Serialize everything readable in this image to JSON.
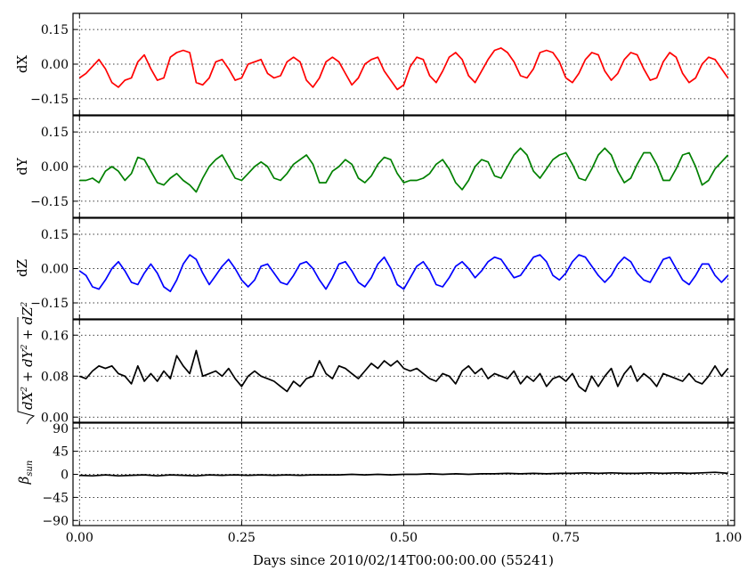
{
  "chart_data": [
    {
      "type": "line",
      "ylabel": "dX",
      "ylim": [
        -0.22,
        0.22
      ],
      "yticks": [
        -0.15,
        0.0,
        0.15
      ],
      "ytick_labels": [
        "−0.15",
        "0.00",
        "0.15"
      ],
      "xlim": [
        -0.01,
        1.01
      ],
      "grid": true,
      "series": [
        {
          "color": "#ff0000",
          "x": [
            0.0,
            0.01,
            0.02,
            0.03,
            0.04,
            0.05,
            0.06,
            0.07,
            0.08,
            0.09,
            0.1,
            0.11,
            0.12,
            0.13,
            0.14,
            0.15,
            0.16,
            0.17,
            0.18,
            0.19,
            0.2,
            0.21,
            0.22,
            0.23,
            0.24,
            0.25,
            0.26,
            0.27,
            0.28,
            0.29,
            0.3,
            0.31,
            0.32,
            0.33,
            0.34,
            0.35,
            0.36,
            0.37,
            0.38,
            0.39,
            0.4,
            0.41,
            0.42,
            0.43,
            0.44,
            0.45,
            0.46,
            0.47,
            0.48,
            0.49,
            0.5,
            0.51,
            0.52,
            0.53,
            0.54,
            0.55,
            0.56,
            0.57,
            0.58,
            0.59,
            0.6,
            0.61,
            0.62,
            0.63,
            0.64,
            0.65,
            0.66,
            0.67,
            0.68,
            0.69,
            0.7,
            0.71,
            0.72,
            0.73,
            0.74,
            0.75,
            0.76,
            0.77,
            0.78,
            0.79,
            0.8,
            0.81,
            0.82,
            0.83,
            0.84,
            0.85,
            0.86,
            0.87,
            0.88,
            0.89,
            0.9,
            0.91,
            0.92,
            0.93,
            0.94,
            0.95,
            0.96,
            0.97,
            0.98,
            0.99,
            1.0
          ],
          "y": [
            -0.06,
            -0.04,
            -0.01,
            0.02,
            -0.02,
            -0.08,
            -0.1,
            -0.07,
            -0.06,
            0.01,
            0.04,
            -0.02,
            -0.07,
            -0.06,
            0.03,
            0.05,
            0.06,
            0.05,
            -0.08,
            -0.09,
            -0.06,
            0.01,
            0.02,
            -0.02,
            -0.07,
            -0.06,
            0.0,
            0.01,
            0.02,
            -0.04,
            -0.06,
            -0.05,
            0.01,
            0.03,
            0.01,
            -0.07,
            -0.1,
            -0.06,
            0.01,
            0.03,
            0.01,
            -0.04,
            -0.09,
            -0.06,
            0.0,
            0.02,
            0.03,
            -0.03,
            -0.07,
            -0.11,
            -0.09,
            -0.01,
            0.03,
            0.02,
            -0.05,
            -0.08,
            -0.03,
            0.03,
            0.05,
            0.02,
            -0.05,
            -0.08,
            -0.03,
            0.02,
            0.06,
            0.07,
            0.05,
            0.01,
            -0.05,
            -0.06,
            -0.02,
            0.05,
            0.06,
            0.05,
            0.01,
            -0.06,
            -0.08,
            -0.04,
            0.02,
            0.05,
            0.04,
            -0.03,
            -0.07,
            -0.04,
            0.02,
            0.05,
            0.04,
            -0.02,
            -0.07,
            -0.06,
            0.01,
            0.05,
            0.03,
            -0.04,
            -0.08,
            -0.06,
            0.0,
            0.03,
            0.02,
            -0.02,
            -0.06
          ]
        }
      ]
    },
    {
      "type": "line",
      "ylabel": "dY",
      "ylim": [
        -0.22,
        0.22
      ],
      "yticks": [
        -0.15,
        0.0,
        0.15
      ],
      "ytick_labels": [
        "−0.15",
        "0.00",
        "0.15"
      ],
      "xlim": [
        -0.01,
        1.01
      ],
      "grid": true,
      "series": [
        {
          "color": "#008000",
          "x": [
            0.0,
            0.01,
            0.02,
            0.03,
            0.04,
            0.05,
            0.06,
            0.07,
            0.08,
            0.09,
            0.1,
            0.11,
            0.12,
            0.13,
            0.14,
            0.15,
            0.16,
            0.17,
            0.18,
            0.19,
            0.2,
            0.21,
            0.22,
            0.23,
            0.24,
            0.25,
            0.26,
            0.27,
            0.28,
            0.29,
            0.3,
            0.31,
            0.32,
            0.33,
            0.34,
            0.35,
            0.36,
            0.37,
            0.38,
            0.39,
            0.4,
            0.41,
            0.42,
            0.43,
            0.44,
            0.45,
            0.46,
            0.47,
            0.48,
            0.49,
            0.5,
            0.51,
            0.52,
            0.53,
            0.54,
            0.55,
            0.56,
            0.57,
            0.58,
            0.59,
            0.6,
            0.61,
            0.62,
            0.63,
            0.64,
            0.65,
            0.66,
            0.67,
            0.68,
            0.69,
            0.7,
            0.71,
            0.72,
            0.73,
            0.74,
            0.75,
            0.76,
            0.77,
            0.78,
            0.79,
            0.8,
            0.81,
            0.82,
            0.83,
            0.84,
            0.85,
            0.86,
            0.87,
            0.88,
            0.89,
            0.9,
            0.91,
            0.92,
            0.93,
            0.94,
            0.95,
            0.96,
            0.97,
            0.98,
            0.99,
            1.0
          ],
          "y": [
            -0.06,
            -0.06,
            -0.05,
            -0.07,
            -0.02,
            0.0,
            -0.02,
            -0.06,
            -0.03,
            0.04,
            0.03,
            -0.02,
            -0.07,
            -0.08,
            -0.05,
            -0.03,
            -0.06,
            -0.08,
            -0.11,
            -0.05,
            0.0,
            0.03,
            0.05,
            0.0,
            -0.05,
            -0.06,
            -0.03,
            0.0,
            0.02,
            0.0,
            -0.05,
            -0.06,
            -0.03,
            0.01,
            0.03,
            0.05,
            0.01,
            -0.07,
            -0.07,
            -0.02,
            0.0,
            0.03,
            0.01,
            -0.05,
            -0.07,
            -0.04,
            0.01,
            0.04,
            0.03,
            -0.03,
            -0.07,
            -0.06,
            -0.06,
            -0.05,
            -0.03,
            0.01,
            0.03,
            -0.01,
            -0.07,
            -0.1,
            -0.06,
            0.0,
            0.03,
            0.02,
            -0.04,
            -0.05,
            0.0,
            0.05,
            0.08,
            0.05,
            -0.02,
            -0.05,
            -0.01,
            0.03,
            0.05,
            0.06,
            0.01,
            -0.05,
            -0.06,
            -0.01,
            0.05,
            0.08,
            0.05,
            -0.02,
            -0.07,
            -0.05,
            0.01,
            0.06,
            0.06,
            0.01,
            -0.06,
            -0.06,
            -0.01,
            0.05,
            0.06,
            0.0,
            -0.08,
            -0.06,
            -0.01,
            0.02,
            0.05
          ]
        }
      ]
    },
    {
      "type": "line",
      "ylabel": "dZ",
      "ylim": [
        -0.22,
        0.22
      ],
      "yticks": [
        -0.15,
        0.0,
        0.15
      ],
      "ytick_labels": [
        "−0.15",
        "0.00",
        "0.15"
      ],
      "xlim": [
        -0.01,
        1.01
      ],
      "grid": true,
      "series": [
        {
          "color": "#0000ff",
          "x": [
            0.0,
            0.01,
            0.02,
            0.03,
            0.04,
            0.05,
            0.06,
            0.07,
            0.08,
            0.09,
            0.1,
            0.11,
            0.12,
            0.13,
            0.14,
            0.15,
            0.16,
            0.17,
            0.18,
            0.19,
            0.2,
            0.21,
            0.22,
            0.23,
            0.24,
            0.25,
            0.26,
            0.27,
            0.28,
            0.29,
            0.3,
            0.31,
            0.32,
            0.33,
            0.34,
            0.35,
            0.36,
            0.37,
            0.38,
            0.39,
            0.4,
            0.41,
            0.42,
            0.43,
            0.44,
            0.45,
            0.46,
            0.47,
            0.48,
            0.49,
            0.5,
            0.51,
            0.52,
            0.53,
            0.54,
            0.55,
            0.56,
            0.57,
            0.58,
            0.59,
            0.6,
            0.61,
            0.62,
            0.63,
            0.64,
            0.65,
            0.66,
            0.67,
            0.68,
            0.69,
            0.7,
            0.71,
            0.72,
            0.73,
            0.74,
            0.75,
            0.76,
            0.77,
            0.78,
            0.79,
            0.8,
            0.81,
            0.82,
            0.83,
            0.84,
            0.85,
            0.86,
            0.87,
            0.88,
            0.89,
            0.9,
            0.91,
            0.92,
            0.93,
            0.94,
            0.95,
            0.96,
            0.97,
            0.98,
            0.99,
            1.0
          ],
          "y": [
            -0.01,
            -0.03,
            -0.08,
            -0.09,
            -0.05,
            0.0,
            0.03,
            -0.01,
            -0.06,
            -0.07,
            -0.02,
            0.02,
            -0.02,
            -0.08,
            -0.1,
            -0.05,
            0.02,
            0.06,
            0.04,
            -0.02,
            -0.07,
            -0.03,
            0.01,
            0.04,
            0.0,
            -0.05,
            -0.08,
            -0.05,
            0.01,
            0.02,
            -0.02,
            -0.06,
            -0.07,
            -0.03,
            0.02,
            0.03,
            0.0,
            -0.05,
            -0.09,
            -0.04,
            0.02,
            0.03,
            -0.01,
            -0.06,
            -0.08,
            -0.04,
            0.02,
            0.05,
            0.0,
            -0.07,
            -0.09,
            -0.04,
            0.01,
            0.03,
            -0.01,
            -0.07,
            -0.08,
            -0.04,
            0.01,
            0.03,
            0.0,
            -0.04,
            -0.01,
            0.03,
            0.05,
            0.04,
            0.0,
            -0.04,
            -0.03,
            0.01,
            0.05,
            0.06,
            0.03,
            -0.03,
            -0.05,
            -0.02,
            0.03,
            0.06,
            0.05,
            0.01,
            -0.03,
            -0.06,
            -0.03,
            0.02,
            0.05,
            0.03,
            -0.02,
            -0.05,
            -0.06,
            -0.01,
            0.04,
            0.05,
            0.0,
            -0.05,
            -0.07,
            -0.03,
            0.02,
            0.02,
            -0.03,
            -0.06,
            -0.03
          ]
        }
      ]
    },
    {
      "type": "line",
      "ylabel": "sqrt(dX^2 + dY^2 + dZ^2)",
      "ylim": [
        -0.01,
        0.19
      ],
      "yticks": [
        0.0,
        0.08,
        0.16
      ],
      "ytick_labels": [
        "0.00",
        "0.08",
        "0.16"
      ],
      "xlim": [
        -0.01,
        1.01
      ],
      "grid": true,
      "series": [
        {
          "color": "#000000",
          "x": [
            0.0,
            0.01,
            0.02,
            0.03,
            0.04,
            0.05,
            0.06,
            0.07,
            0.08,
            0.09,
            0.1,
            0.11,
            0.12,
            0.13,
            0.14,
            0.15,
            0.16,
            0.17,
            0.18,
            0.19,
            0.2,
            0.21,
            0.22,
            0.23,
            0.24,
            0.25,
            0.26,
            0.27,
            0.28,
            0.29,
            0.3,
            0.31,
            0.32,
            0.33,
            0.34,
            0.35,
            0.36,
            0.37,
            0.38,
            0.39,
            0.4,
            0.41,
            0.42,
            0.43,
            0.44,
            0.45,
            0.46,
            0.47,
            0.48,
            0.49,
            0.5,
            0.51,
            0.52,
            0.53,
            0.54,
            0.55,
            0.56,
            0.57,
            0.58,
            0.59,
            0.6,
            0.61,
            0.62,
            0.63,
            0.64,
            0.65,
            0.66,
            0.67,
            0.68,
            0.69,
            0.7,
            0.71,
            0.72,
            0.73,
            0.74,
            0.75,
            0.76,
            0.77,
            0.78,
            0.79,
            0.8,
            0.81,
            0.82,
            0.83,
            0.84,
            0.85,
            0.86,
            0.87,
            0.88,
            0.89,
            0.9,
            0.91,
            0.92,
            0.93,
            0.94,
            0.95,
            0.96,
            0.97,
            0.98,
            0.99,
            1.0
          ],
          "y": [
            0.08,
            0.075,
            0.09,
            0.1,
            0.095,
            0.1,
            0.085,
            0.08,
            0.065,
            0.1,
            0.07,
            0.085,
            0.07,
            0.09,
            0.075,
            0.12,
            0.1,
            0.085,
            0.13,
            0.08,
            0.085,
            0.09,
            0.08,
            0.095,
            0.075,
            0.06,
            0.08,
            0.09,
            0.08,
            0.075,
            0.07,
            0.06,
            0.05,
            0.07,
            0.06,
            0.075,
            0.08,
            0.11,
            0.085,
            0.075,
            0.1,
            0.095,
            0.085,
            0.075,
            0.09,
            0.105,
            0.095,
            0.11,
            0.1,
            0.11,
            0.095,
            0.09,
            0.095,
            0.085,
            0.075,
            0.07,
            0.085,
            0.08,
            0.065,
            0.09,
            0.1,
            0.085,
            0.095,
            0.075,
            0.085,
            0.08,
            0.075,
            0.09,
            0.065,
            0.08,
            0.07,
            0.085,
            0.06,
            0.075,
            0.08,
            0.07,
            0.085,
            0.06,
            0.05,
            0.08,
            0.06,
            0.08,
            0.095,
            0.06,
            0.085,
            0.1,
            0.07,
            0.085,
            0.075,
            0.06,
            0.085,
            0.08,
            0.075,
            0.07,
            0.085,
            0.07,
            0.065,
            0.08,
            0.1,
            0.08,
            0.095
          ]
        }
      ]
    },
    {
      "type": "line",
      "ylabel": "beta_sun",
      "ylim": [
        -100,
        100
      ],
      "yticks": [
        -90,
        -45,
        0,
        45,
        90
      ],
      "ytick_labels": [
        "−90",
        "−45",
        "0",
        "45",
        "90"
      ],
      "xlim": [
        -0.01,
        1.01
      ],
      "grid": true,
      "series": [
        {
          "color": "#000000",
          "x": [
            0.0,
            0.02,
            0.04,
            0.06,
            0.08,
            0.1,
            0.12,
            0.14,
            0.16,
            0.18,
            0.2,
            0.22,
            0.24,
            0.26,
            0.28,
            0.3,
            0.32,
            0.34,
            0.36,
            0.38,
            0.4,
            0.42,
            0.44,
            0.46,
            0.48,
            0.5,
            0.52,
            0.54,
            0.56,
            0.58,
            0.6,
            0.62,
            0.64,
            0.66,
            0.68,
            0.7,
            0.72,
            0.74,
            0.76,
            0.78,
            0.8,
            0.82,
            0.84,
            0.86,
            0.88,
            0.9,
            0.92,
            0.94,
            0.96,
            0.98,
            1.0
          ],
          "y": [
            -2,
            -3,
            -1,
            -3,
            -2,
            -1,
            -3,
            -1,
            -2,
            -3,
            -1,
            -2,
            -1,
            -2,
            -1,
            -2,
            -1,
            -2,
            -1,
            -1,
            -1,
            0,
            -1,
            0,
            -1,
            0,
            0,
            1,
            0,
            1,
            0,
            1,
            1,
            2,
            1,
            2,
            1,
            2,
            2,
            3,
            2,
            3,
            2,
            2,
            3,
            2,
            3,
            2,
            3,
            4,
            2
          ]
        }
      ]
    }
  ],
  "x_axis": {
    "label": "Days since 2010/02/14T00:00:00.00 (55241)",
    "ticks": [
      0.0,
      0.25,
      0.5,
      0.75,
      1.0
    ],
    "tick_labels": [
      "0.00",
      "0.25",
      "0.50",
      "0.75",
      "1.00"
    ]
  },
  "ylabel_display": {
    "panel_4_rad": "dX",
    "panel_4_t1": "2",
    "panel_4_mid1": " + dY",
    "panel_4_t2": "2",
    "panel_4_mid2": " + dZ",
    "panel_4_t3": "2",
    "panel_5_base": "β",
    "panel_5_sub": "sun"
  }
}
